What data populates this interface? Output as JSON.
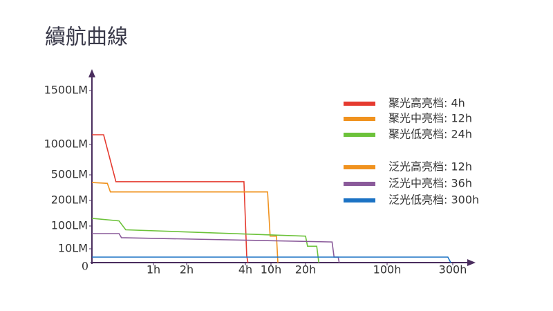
{
  "chart_data": {
    "type": "line",
    "title": "續航曲線",
    "xticks": [
      {
        "value": 0,
        "label": "0"
      },
      {
        "value": 1,
        "label": "1h"
      },
      {
        "value": 2,
        "label": "2h"
      },
      {
        "value": 4,
        "label": "4h"
      },
      {
        "value": 10,
        "label": "10h"
      },
      {
        "value": 20,
        "label": "20h"
      },
      {
        "value": 100,
        "label": "100h"
      },
      {
        "value": 300,
        "label": "300h"
      }
    ],
    "yticks": [
      {
        "value": 10,
        "label": "10LM"
      },
      {
        "value": 100,
        "label": "100LM"
      },
      {
        "value": 200,
        "label": "200LM"
      },
      {
        "value": 500,
        "label": "500LM"
      },
      {
        "value": 1000,
        "label": "1000LM"
      },
      {
        "value": 1500,
        "label": "1500LM"
      }
    ],
    "series": [
      {
        "name": "聚光高亮档: 4h",
        "color": "#e53a2f",
        "x": [
          0,
          0.19,
          0.39,
          3.95,
          4.3,
          4.6
        ],
        "values": [
          1090,
          1090,
          420,
          420,
          5,
          0
        ]
      },
      {
        "name": "聚光中亮档: 12h",
        "color": "#f0921e",
        "x": [
          0,
          0.25,
          0.3,
          9.2,
          9.8,
          11.6,
          12
        ],
        "values": [
          410,
          400,
          300,
          300,
          60,
          60,
          0
        ]
      },
      {
        "name": "聚光低亮档: 24h",
        "color": "#6cc23a",
        "x": [
          0,
          0.44,
          0.55,
          20,
          22,
          31,
          33
        ],
        "values": [
          130,
          120,
          85,
          60,
          20,
          20,
          0
        ]
      },
      {
        "name": "泛光高亮档: 12h",
        "color": "#f0921e",
        "x": [],
        "values": []
      },
      {
        "name": "泛光中亮档: 36h",
        "color": "#8a5a9a",
        "x": [
          0,
          0.44,
          0.48,
          46,
          48,
          52,
          53
        ],
        "values": [
          70,
          70,
          54,
          37,
          4,
          4,
          0
        ]
      },
      {
        "name": "泛光低亮档: 300h",
        "color": "#1b72c4",
        "x": [
          0,
          285,
          294
        ],
        "values": [
          4,
          4,
          0
        ]
      }
    ]
  }
}
